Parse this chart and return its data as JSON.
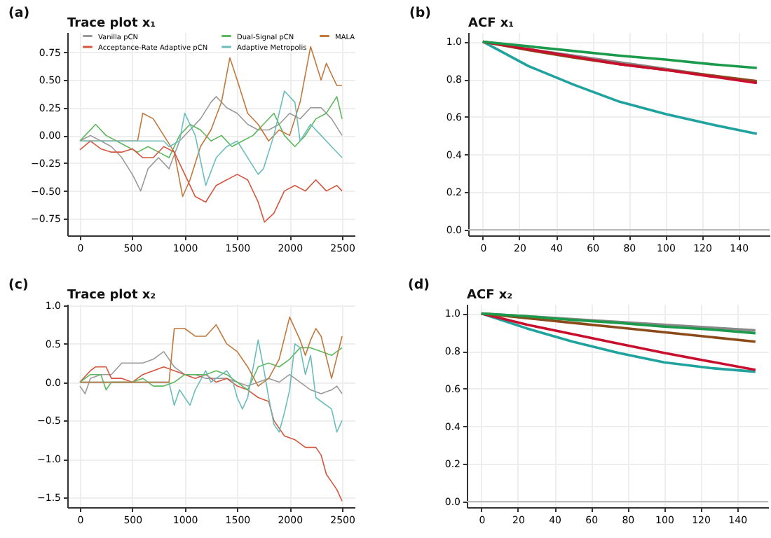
{
  "chart_data": [
    {
      "type": "line",
      "title": "Trace plot x₁",
      "annotations": [
        "(a)"
      ],
      "grid": true,
      "legend": "top",
      "xlim": [
        -120,
        2620
      ],
      "xticks": [
        0,
        500,
        1000,
        1500,
        2000,
        2500
      ],
      "ylim": [
        -0.9,
        0.93
      ],
      "yticks": [
        {
          "value": -0.75,
          "label": "−0.75"
        },
        {
          "value": -0.5,
          "label": "−0.50"
        },
        {
          "value": -0.25,
          "label": "−0.25"
        },
        {
          "value": 0,
          "label": "0.00"
        },
        {
          "value": 0.25,
          "label": "0.25"
        },
        {
          "value": 0.5,
          "label": "0.50"
        },
        {
          "value": 0.75,
          "label": "0.75"
        }
      ],
      "series": [
        {
          "name": "Vanilla pCN",
          "color": "#9a9a9a",
          "x": [
            0,
            100,
            200,
            300,
            400,
            500,
            580,
            650,
            750,
            850,
            950,
            1050,
            1150,
            1250,
            1300,
            1400,
            1500,
            1600,
            1700,
            1800,
            1900,
            2000,
            2100,
            2200,
            2300,
            2400,
            2500
          ],
          "values": [
            -0.05,
            0.0,
            -0.05,
            -0.1,
            -0.2,
            -0.35,
            -0.5,
            -0.3,
            -0.2,
            -0.3,
            -0.05,
            0.05,
            0.15,
            0.3,
            0.35,
            0.25,
            0.2,
            0.1,
            0.05,
            0.05,
            0.1,
            0.2,
            0.15,
            0.25,
            0.25,
            0.15,
            0.0
          ]
        },
        {
          "name": "Dual-Signal pCN",
          "color": "#5cb85c",
          "x": [
            0,
            50,
            150,
            250,
            350,
            450,
            550,
            650,
            750,
            850,
            950,
            1050,
            1150,
            1250,
            1350,
            1450,
            1550,
            1650,
            1750,
            1850,
            1950,
            2050,
            2150,
            2250,
            2350,
            2450,
            2500
          ],
          "values": [
            -0.05,
            0.0,
            0.1,
            0.0,
            -0.05,
            -0.1,
            -0.15,
            -0.1,
            -0.15,
            -0.2,
            0.0,
            0.1,
            0.05,
            -0.05,
            0.0,
            -0.1,
            -0.05,
            0.0,
            0.1,
            0.2,
            0.0,
            -0.1,
            0.0,
            0.15,
            0.2,
            0.35,
            0.15
          ]
        },
        {
          "name": "MALA",
          "color": "#c0783c",
          "x": [
            0,
            550,
            600,
            700,
            800,
            900,
            980,
            1050,
            1150,
            1250,
            1350,
            1430,
            1500,
            1600,
            1700,
            1800,
            1900,
            2000,
            2100,
            2200,
            2300,
            2350,
            2400,
            2450,
            2500
          ],
          "values": [
            -0.05,
            -0.05,
            0.2,
            0.15,
            0.0,
            -0.15,
            -0.55,
            -0.4,
            -0.1,
            0.05,
            0.3,
            0.7,
            0.5,
            0.2,
            0.1,
            -0.05,
            0.05,
            0.0,
            0.3,
            0.8,
            0.5,
            0.65,
            0.55,
            0.45,
            0.45
          ]
        },
        {
          "name": "Acceptance-Rate Adaptive pCN",
          "color": "#d5553f",
          "x": [
            0,
            100,
            200,
            300,
            400,
            500,
            600,
            700,
            800,
            900,
            1000,
            1100,
            1200,
            1300,
            1400,
            1500,
            1600,
            1700,
            1760,
            1850,
            1950,
            2050,
            2150,
            2250,
            2350,
            2450,
            2500
          ],
          "values": [
            -0.13,
            -0.05,
            -0.12,
            -0.15,
            -0.15,
            -0.12,
            -0.2,
            -0.2,
            -0.1,
            -0.15,
            -0.35,
            -0.55,
            -0.6,
            -0.45,
            -0.4,
            -0.35,
            -0.4,
            -0.6,
            -0.78,
            -0.7,
            -0.5,
            -0.45,
            -0.5,
            -0.4,
            -0.5,
            -0.45,
            -0.5
          ]
        },
        {
          "name": "Adaptive Metropolis",
          "color": "#6cbcbc",
          "x": [
            0,
            800,
            850,
            950,
            1000,
            1100,
            1200,
            1300,
            1400,
            1500,
            1600,
            1700,
            1750,
            1850,
            1950,
            2050,
            2100,
            2200,
            2300,
            2400,
            2500
          ],
          "values": [
            -0.05,
            -0.05,
            -0.1,
            -0.05,
            0.2,
            0.0,
            -0.45,
            -0.2,
            -0.1,
            -0.05,
            -0.2,
            -0.35,
            -0.3,
            0.0,
            0.4,
            0.3,
            -0.05,
            0.1,
            0.0,
            -0.1,
            -0.2
          ]
        }
      ]
    },
    {
      "type": "line",
      "title": "ACF x₁",
      "annotations": [
        "(b)"
      ],
      "grid": true,
      "xlim": [
        -8,
        157
      ],
      "xticks": [
        0,
        20,
        40,
        60,
        80,
        100,
        120,
        140
      ],
      "ylim": [
        -0.03,
        1.05
      ],
      "yticks": [
        {
          "value": 0,
          "label": "0.0"
        },
        {
          "value": 0.2,
          "label": "0.2"
        },
        {
          "value": 0.4,
          "label": "0.4"
        },
        {
          "value": 0.6,
          "label": "0.6"
        },
        {
          "value": 0.8,
          "label": "0.8"
        },
        {
          "value": 1,
          "label": "1.0"
        }
      ],
      "ref_lines": [
        {
          "axis": "y",
          "value": 0,
          "color": "#bbbbbb"
        }
      ],
      "x": [
        0,
        25,
        50,
        75,
        100,
        125,
        150
      ],
      "series": [
        {
          "color": "#888888",
          "values": [
            1,
            0.96,
            0.925,
            0.89,
            0.855,
            0.82,
            0.785
          ]
        },
        {
          "color": "#20a39e",
          "values": [
            1,
            0.87,
            0.77,
            0.68,
            0.615,
            0.56,
            0.51
          ]
        },
        {
          "color": "#8b4a1a",
          "values": [
            1,
            0.955,
            0.915,
            0.88,
            0.85,
            0.82,
            0.79
          ]
        },
        {
          "color": "#c8102e",
          "values": [
            1,
            0.96,
            0.92,
            0.88,
            0.85,
            0.815,
            0.78
          ]
        },
        {
          "color": "#1a9a4a",
          "values": [
            1,
            0.975,
            0.95,
            0.925,
            0.905,
            0.88,
            0.86
          ]
        }
      ]
    },
    {
      "type": "line",
      "title": "Trace plot x₂",
      "annotations": [
        "(c)"
      ],
      "grid": true,
      "xlim": [
        -120,
        2620
      ],
      "xticks": [
        0,
        500,
        1000,
        1500,
        2000,
        2500
      ],
      "ylim": [
        -1.63,
        1.02
      ],
      "yticks": [
        {
          "value": -1.5,
          "label": "−1.5"
        },
        {
          "value": -1,
          "label": "−1.0"
        },
        {
          "value": -0.5,
          "label": "−0.5"
        },
        {
          "value": 0,
          "label": "0.0"
        },
        {
          "value": 0.5,
          "label": "0.5"
        },
        {
          "value": 1,
          "label": "1.0"
        }
      ],
      "series": [
        {
          "color": "#9a9a9a",
          "x": [
            0,
            50,
            100,
            200,
            300,
            400,
            500,
            600,
            700,
            800,
            900,
            1000,
            1100,
            1200,
            1300,
            1400,
            1500,
            1600,
            1700,
            1800,
            1900,
            2000,
            2100,
            2200,
            2300,
            2400,
            2450,
            2500
          ],
          "values": [
            -0.05,
            -0.15,
            0.05,
            0.1,
            0.1,
            0.25,
            0.25,
            0.25,
            0.3,
            0.4,
            0.2,
            0.1,
            0.1,
            0.05,
            0.05,
            0.05,
            0.0,
            -0.05,
            0.0,
            0.05,
            0.0,
            0.1,
            0.0,
            -0.1,
            -0.15,
            -0.1,
            -0.05,
            -0.15
          ]
        },
        {
          "color": "#d5553f",
          "x": [
            0,
            100,
            150,
            250,
            300,
            400,
            500,
            600,
            700,
            800,
            900,
            1000,
            1100,
            1200,
            1300,
            1400,
            1500,
            1600,
            1700,
            1800,
            1850,
            1950,
            2050,
            2150,
            2250,
            2300,
            2350,
            2400,
            2450,
            2500
          ],
          "values": [
            0.0,
            0.15,
            0.2,
            0.2,
            0.05,
            0.05,
            0.0,
            0.1,
            0.15,
            0.2,
            0.15,
            0.1,
            0.05,
            0.1,
            0.0,
            0.05,
            -0.05,
            -0.1,
            -0.2,
            -0.25,
            -0.5,
            -0.7,
            -0.75,
            -0.85,
            -0.85,
            -0.95,
            -1.2,
            -1.3,
            -1.4,
            -1.55
          ]
        },
        {
          "color": "#5cb85c",
          "x": [
            0,
            100,
            200,
            250,
            300,
            400,
            500,
            600,
            700,
            800,
            900,
            1000,
            1100,
            1200,
            1300,
            1400,
            1500,
            1600,
            1700,
            1800,
            1900,
            2000,
            2100,
            2200,
            2300,
            2400,
            2500
          ],
          "values": [
            0.0,
            0.1,
            0.1,
            -0.1,
            0.0,
            0.0,
            0.0,
            0.05,
            -0.05,
            -0.05,
            0.0,
            0.1,
            0.1,
            0.1,
            0.15,
            0.1,
            0.0,
            -0.1,
            0.2,
            0.25,
            0.2,
            0.3,
            0.45,
            0.45,
            0.4,
            0.35,
            0.45
          ]
        },
        {
          "color": "#6cbcbc",
          "x": [
            0,
            850,
            900,
            950,
            1000,
            1050,
            1100,
            1200,
            1250,
            1350,
            1400,
            1450,
            1500,
            1550,
            1600,
            1700,
            1750,
            1800,
            1850,
            1900,
            1950,
            2000,
            2050,
            2100,
            2150,
            2200,
            2250,
            2300,
            2400,
            2450,
            2500
          ],
          "values": [
            0.0,
            0.0,
            -0.3,
            -0.1,
            -0.2,
            -0.3,
            -0.1,
            0.15,
            0.0,
            0.1,
            0.15,
            0.05,
            -0.2,
            -0.35,
            -0.2,
            0.55,
            0.2,
            -0.2,
            -0.55,
            -0.65,
            -0.4,
            -0.1,
            0.5,
            0.45,
            0.1,
            0.35,
            -0.2,
            -0.25,
            -0.35,
            -0.65,
            -0.5
          ]
        },
        {
          "color": "#c0783c",
          "x": [
            0,
            850,
            900,
            1000,
            1100,
            1200,
            1300,
            1400,
            1500,
            1600,
            1700,
            1800,
            1900,
            2000,
            2100,
            2150,
            2200,
            2250,
            2300,
            2400,
            2500
          ],
          "values": [
            0.0,
            0.0,
            0.7,
            0.7,
            0.6,
            0.6,
            0.75,
            0.5,
            0.4,
            0.2,
            -0.05,
            0.05,
            0.3,
            0.85,
            0.55,
            0.35,
            0.55,
            0.7,
            0.6,
            0.05,
            0.6
          ]
        }
      ]
    },
    {
      "type": "line",
      "title": "ACF x₂",
      "annotations": [
        "(d)"
      ],
      "grid": true,
      "xlim": [
        -8,
        157
      ],
      "xticks": [
        0,
        20,
        40,
        60,
        80,
        100,
        120,
        140
      ],
      "ylim": [
        -0.03,
        1.05
      ],
      "yticks": [
        {
          "value": 0,
          "label": "0.0"
        },
        {
          "value": 0.2,
          "label": "0.2"
        },
        {
          "value": 0.4,
          "label": "0.4"
        },
        {
          "value": 0.6,
          "label": "0.6"
        },
        {
          "value": 0.8,
          "label": "0.8"
        },
        {
          "value": 1,
          "label": "1.0"
        }
      ],
      "ref_lines": [
        {
          "axis": "y",
          "value": 0,
          "color": "#bbbbbb"
        }
      ],
      "x": [
        0,
        25,
        50,
        75,
        100,
        125,
        150
      ],
      "series": [
        {
          "color": "#888888",
          "values": [
            1,
            0.985,
            0.97,
            0.955,
            0.94,
            0.925,
            0.91
          ]
        },
        {
          "color": "#20a39e",
          "values": [
            1,
            0.92,
            0.85,
            0.79,
            0.74,
            0.71,
            0.69
          ]
        },
        {
          "color": "#c8102e",
          "values": [
            1,
            0.94,
            0.89,
            0.84,
            0.79,
            0.745,
            0.7
          ]
        },
        {
          "color": "#8b4a1a",
          "values": [
            1,
            0.975,
            0.95,
            0.925,
            0.9,
            0.875,
            0.85
          ]
        },
        {
          "color": "#1a9a4a",
          "values": [
            1,
            0.985,
            0.965,
            0.95,
            0.93,
            0.915,
            0.895
          ]
        }
      ]
    }
  ]
}
